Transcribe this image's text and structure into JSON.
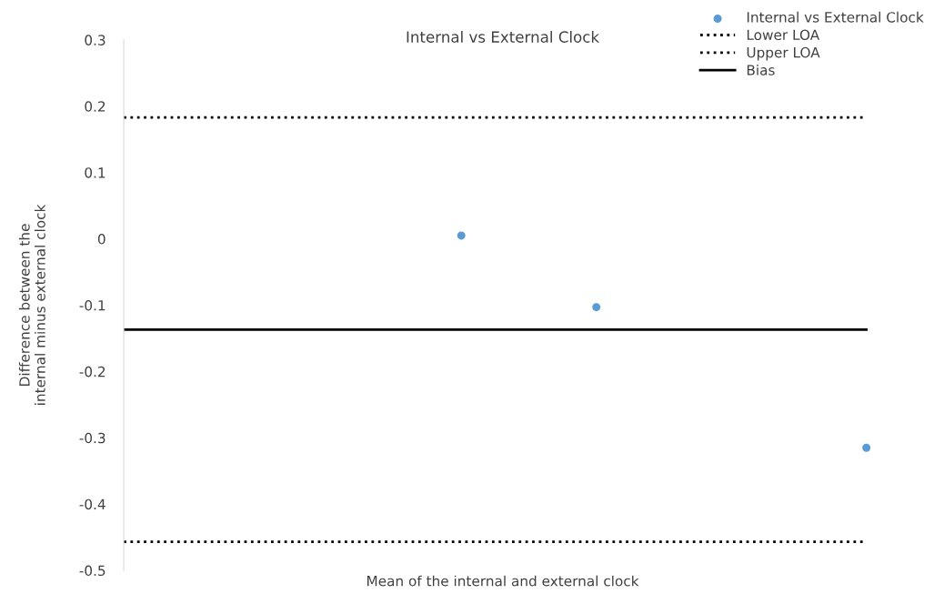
{
  "chart_data": {
    "type": "scatter",
    "title": "Internal vs External Clock",
    "xlabel": "Mean of the internal and external clock",
    "ylabel": "Difference between the\ninternal minus external clock",
    "categories": [
      null,
      null,
      null,
      null,
      null,
      null,
      null,
      null,
      null,
      null,
      null,
      null
    ],
    "series": [
      {
        "name": "Internal vs External Clock",
        "color": "#5b9bd5",
        "marker": "circle",
        "values": [
          null,
          null,
          null,
          null,
          null,
          0.005,
          null,
          -0.103,
          null,
          null,
          null,
          -0.315
        ]
      },
      {
        "name": "Lower LOA",
        "type": "line",
        "color": "#000000",
        "line_style": "dotted",
        "values": [
          -0.457,
          -0.457,
          -0.457,
          -0.457,
          -0.457,
          -0.457,
          -0.457,
          -0.457,
          -0.457,
          -0.457,
          -0.457,
          -0.457
        ]
      },
      {
        "name": "Upper LOA",
        "type": "line",
        "color": "#000000",
        "line_style": "dotted",
        "values": [
          0.183,
          0.183,
          0.183,
          0.183,
          0.183,
          0.183,
          0.183,
          0.183,
          0.183,
          0.183,
          0.183,
          0.183
        ]
      },
      {
        "name": "Bias",
        "type": "line",
        "color": "#000000",
        "line_style": "solid",
        "values": [
          -0.137,
          -0.137,
          -0.137,
          -0.137,
          -0.137,
          -0.137,
          -0.137,
          -0.137,
          -0.137,
          -0.137,
          -0.137,
          -0.137
        ]
      }
    ],
    "ylim": [
      -0.5,
      0.3
    ],
    "yticks": [
      {
        "value": -0.5,
        "label": "-0.5"
      },
      {
        "value": -0.4,
        "label": "-0.4"
      },
      {
        "value": -0.3,
        "label": "-0.3"
      },
      {
        "value": -0.2,
        "label": "-0.2"
      },
      {
        "value": -0.1,
        "label": "-0.1"
      },
      0,
      0.1,
      0.2,
      0.3
    ],
    "tick_labels": "y",
    "grid": false,
    "legend": "top right"
  }
}
